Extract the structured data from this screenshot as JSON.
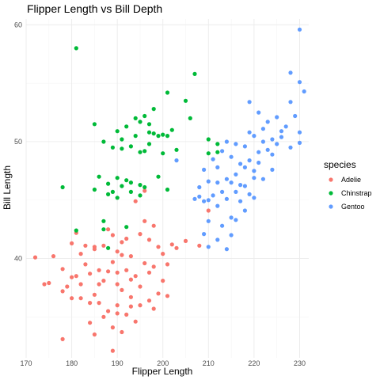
{
  "chart_data": {
    "type": "scatter",
    "title": "Flipper Length vs Bill Depth",
    "xlabel": "Flipper Length",
    "ylabel": "Bill Length",
    "xlim": [
      170,
      232
    ],
    "ylim": [
      31.5,
      60.5
    ],
    "x_ticks": [
      170,
      180,
      190,
      200,
      210,
      220,
      230
    ],
    "y_ticks": [
      40,
      50,
      60
    ],
    "grid": true,
    "legend": {
      "title": "species",
      "position": "right"
    },
    "series": [
      {
        "name": "Adelie",
        "color": "#F8766D",
        "points": [
          [
            172,
            40.1
          ],
          [
            174,
            37.8
          ],
          [
            175,
            37.9
          ],
          [
            176,
            40.2
          ],
          [
            178,
            37.2
          ],
          [
            178,
            33.1
          ],
          [
            178,
            39.1
          ],
          [
            179,
            37.6
          ],
          [
            180,
            36.6
          ],
          [
            180,
            41.3
          ],
          [
            180,
            38.4
          ],
          [
            181,
            38.5
          ],
          [
            181,
            42.2
          ],
          [
            182,
            37.8
          ],
          [
            182,
            36.6
          ],
          [
            183,
            41.1
          ],
          [
            184,
            34.5
          ],
          [
            184,
            38.7
          ],
          [
            185,
            36.9
          ],
          [
            185,
            40.8
          ],
          [
            186,
            36.2
          ],
          [
            186,
            37.8
          ],
          [
            187,
            41.1
          ],
          [
            188,
            35.5
          ],
          [
            188,
            38.9
          ],
          [
            189,
            32.1
          ],
          [
            189,
            39.7
          ],
          [
            190,
            36.0
          ],
          [
            190,
            38.8
          ],
          [
            190,
            40.6
          ],
          [
            191,
            37.3
          ],
          [
            191,
            41.4
          ],
          [
            192,
            35.2
          ],
          [
            192,
            39.0
          ],
          [
            193,
            36.7
          ],
          [
            193,
            40.2
          ],
          [
            194,
            34.6
          ],
          [
            194,
            38.5
          ],
          [
            195,
            42.1
          ],
          [
            195,
            37.6
          ],
          [
            196,
            39.6
          ],
          [
            196,
            43.2
          ],
          [
            197,
            36.4
          ],
          [
            197,
            41.6
          ],
          [
            198,
            35.7
          ],
          [
            198,
            39.3
          ],
          [
            199,
            37.0
          ],
          [
            199,
            41.0
          ],
          [
            200,
            40.4
          ],
          [
            200,
            38.1
          ],
          [
            201,
            36.8
          ],
          [
            201,
            39.5
          ],
          [
            202,
            41.2
          ],
          [
            203,
            40.9
          ],
          [
            205,
            41.5
          ],
          [
            208,
            41.1
          ],
          [
            210,
            44.1
          ],
          [
            185,
            33.5
          ],
          [
            187,
            35.0
          ],
          [
            189,
            34.1
          ],
          [
            191,
            33.7
          ],
          [
            193,
            35.9
          ],
          [
            195,
            36.0
          ],
          [
            188,
            42.5
          ],
          [
            183,
            39.5
          ],
          [
            186,
            39.0
          ],
          [
            190,
            37.8
          ],
          [
            192,
            41.7
          ],
          [
            194,
            44.9
          ],
          [
            196,
            45.8
          ],
          [
            198,
            42.8
          ],
          [
            190,
            35.3
          ],
          [
            184,
            36.2
          ],
          [
            182,
            40.4
          ],
          [
            187,
            38.1
          ],
          [
            189,
            42.0
          ],
          [
            191,
            40.3
          ],
          [
            193,
            38.2
          ],
          [
            185,
            41.0
          ],
          [
            197,
            38.8
          ]
        ]
      },
      {
        "name": "Chinstrap",
        "color": "#00BA38",
        "points": [
          [
            178,
            46.1
          ],
          [
            181,
            58.0
          ],
          [
            181,
            42.4
          ],
          [
            185,
            51.5
          ],
          [
            186,
            47.0
          ],
          [
            187,
            42.5
          ],
          [
            187,
            43.2
          ],
          [
            187,
            50.0
          ],
          [
            188,
            45.5
          ],
          [
            188,
            46.4
          ],
          [
            188,
            40.9
          ],
          [
            189,
            49.5
          ],
          [
            190,
            46.9
          ],
          [
            190,
            45.2
          ],
          [
            190,
            50.9
          ],
          [
            191,
            46.2
          ],
          [
            191,
            50.2
          ],
          [
            192,
            46.7
          ],
          [
            192,
            51.3
          ],
          [
            193,
            46.5
          ],
          [
            193,
            49.6
          ],
          [
            193,
            45.7
          ],
          [
            194,
            52.0
          ],
          [
            194,
            50.5
          ],
          [
            195,
            49.1
          ],
          [
            195,
            51.7
          ],
          [
            195,
            45.4
          ],
          [
            196,
            52.2
          ],
          [
            196,
            49.2
          ],
          [
            196,
            46.1
          ],
          [
            197,
            50.8
          ],
          [
            197,
            49.8
          ],
          [
            198,
            50.7
          ],
          [
            198,
            52.8
          ],
          [
            199,
            50.5
          ],
          [
            199,
            47.0
          ],
          [
            200,
            50.6
          ],
          [
            200,
            49.0
          ],
          [
            201,
            54.2
          ],
          [
            201,
            50.5
          ],
          [
            201,
            45.9
          ],
          [
            202,
            51.0
          ],
          [
            203,
            49.3
          ],
          [
            205,
            53.5
          ],
          [
            206,
            52.0
          ],
          [
            207,
            55.8
          ],
          [
            210,
            50.2
          ],
          [
            210,
            49.0
          ],
          [
            212,
            49.8
          ],
          [
            212,
            49.1
          ],
          [
            185,
            45.9
          ],
          [
            189,
            45.7
          ],
          [
            191,
            49.4
          ],
          [
            192,
            42.7
          ],
          [
            195,
            46.3
          ],
          [
            197,
            51.5
          ]
        ]
      },
      {
        "name": "Gentoo",
        "color": "#619CFF",
        "points": [
          [
            203,
            48.4
          ],
          [
            207,
            45.1
          ],
          [
            208,
            45.3
          ],
          [
            208,
            46.1
          ],
          [
            209,
            44.9
          ],
          [
            209,
            47.6
          ],
          [
            210,
            45.0
          ],
          [
            210,
            43.2
          ],
          [
            210,
            46.6
          ],
          [
            211,
            45.4
          ],
          [
            211,
            48.5
          ],
          [
            212,
            46.5
          ],
          [
            212,
            44.5
          ],
          [
            212,
            47.8
          ],
          [
            213,
            45.7
          ],
          [
            213,
            42.8
          ],
          [
            213,
            49.2
          ],
          [
            214,
            45.1
          ],
          [
            214,
            46.8
          ],
          [
            214,
            50.0
          ],
          [
            215,
            46.5
          ],
          [
            215,
            48.7
          ],
          [
            215,
            43.5
          ],
          [
            216,
            47.2
          ],
          [
            216,
            45.7
          ],
          [
            216,
            49.8
          ],
          [
            217,
            48.1
          ],
          [
            217,
            44.9
          ],
          [
            217,
            46.3
          ],
          [
            218,
            46.2
          ],
          [
            218,
            49.6
          ],
          [
            218,
            47.8
          ],
          [
            219,
            45.5
          ],
          [
            219,
            50.8
          ],
          [
            219,
            48.4
          ],
          [
            220,
            47.5
          ],
          [
            220,
            46.9
          ],
          [
            220,
            50.5
          ],
          [
            221,
            49.1
          ],
          [
            221,
            52.5
          ],
          [
            221,
            48.2
          ],
          [
            222,
            50.0
          ],
          [
            222,
            46.8
          ],
          [
            222,
            51.1
          ],
          [
            223,
            49.3
          ],
          [
            223,
            51.7
          ],
          [
            224,
            50.2
          ],
          [
            224,
            48.9
          ],
          [
            225,
            52.1
          ],
          [
            225,
            49.8
          ],
          [
            226,
            50.4
          ],
          [
            227,
            51.3
          ],
          [
            228,
            55.9
          ],
          [
            228,
            49.5
          ],
          [
            229,
            52.2
          ],
          [
            230,
            59.6
          ],
          [
            230,
            55.1
          ],
          [
            230,
            50.8
          ],
          [
            231,
            54.3
          ],
          [
            209,
            42.1
          ],
          [
            210,
            41.0
          ],
          [
            212,
            41.6
          ],
          [
            214,
            40.8
          ],
          [
            216,
            43.3
          ],
          [
            218,
            44.1
          ],
          [
            220,
            45.2
          ],
          [
            224,
            47.6
          ],
          [
            226,
            50.9
          ],
          [
            228,
            53.4
          ],
          [
            230,
            49.9
          ],
          [
            215,
            42.0
          ],
          [
            219,
            53.4
          ]
        ]
      }
    ]
  }
}
